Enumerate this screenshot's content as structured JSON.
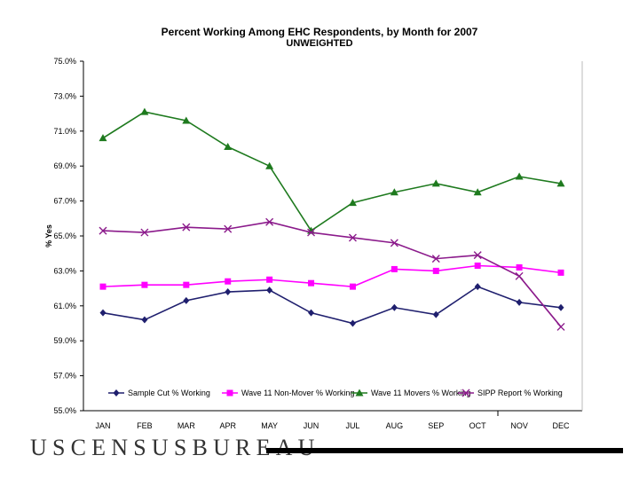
{
  "chart_data": {
    "type": "line",
    "title": "Percent Working Among EHC Respondents, by Month for 2007",
    "subtitle": "UNWEIGHTED",
    "ylabel": "% Yes",
    "xlabel": "",
    "categories": [
      "JAN",
      "FEB",
      "MAR",
      "APR",
      "MAY",
      "JUN",
      "JUL",
      "AUG",
      "SEP",
      "OCT",
      "NOV",
      "DEC"
    ],
    "ylim": [
      55.0,
      75.0
    ],
    "yticks": [
      "75.0%",
      "73.0%",
      "71.0%",
      "69.0%",
      "67.0%",
      "65.0%",
      "63.0%",
      "61.0%",
      "59.0%",
      "57.0%",
      "55.0%"
    ],
    "series": [
      {
        "name": "Sample Cut % Working",
        "color": "#1f1f6e",
        "marker": "diamond",
        "values": [
          60.6,
          60.2,
          61.3,
          61.8,
          61.9,
          60.6,
          60.0,
          60.9,
          60.5,
          62.1,
          61.2,
          60.9
        ]
      },
      {
        "name": "Wave 11 Non-Mover % Working",
        "color": "#ff00ff",
        "marker": "square",
        "values": [
          62.1,
          62.2,
          62.2,
          62.4,
          62.5,
          62.3,
          62.1,
          63.1,
          63.0,
          63.3,
          63.2,
          62.9
        ]
      },
      {
        "name": "Wave 11 Movers % Working",
        "color": "#1e7a1e",
        "marker": "triangle",
        "values": [
          70.6,
          72.1,
          71.6,
          70.1,
          69.0,
          65.3,
          66.9,
          67.5,
          68.0,
          67.5,
          68.4,
          68.0
        ]
      },
      {
        "name": "SIPP Report % Working",
        "color": "#8b1a8b",
        "marker": "x",
        "values": [
          65.3,
          65.2,
          65.5,
          65.4,
          65.8,
          65.2,
          64.9,
          64.6,
          63.7,
          63.9,
          62.7,
          59.8
        ]
      }
    ],
    "legend": "bottom-inside",
    "grid": false
  },
  "footer": {
    "logo": "USCENSUSBUREAU"
  }
}
